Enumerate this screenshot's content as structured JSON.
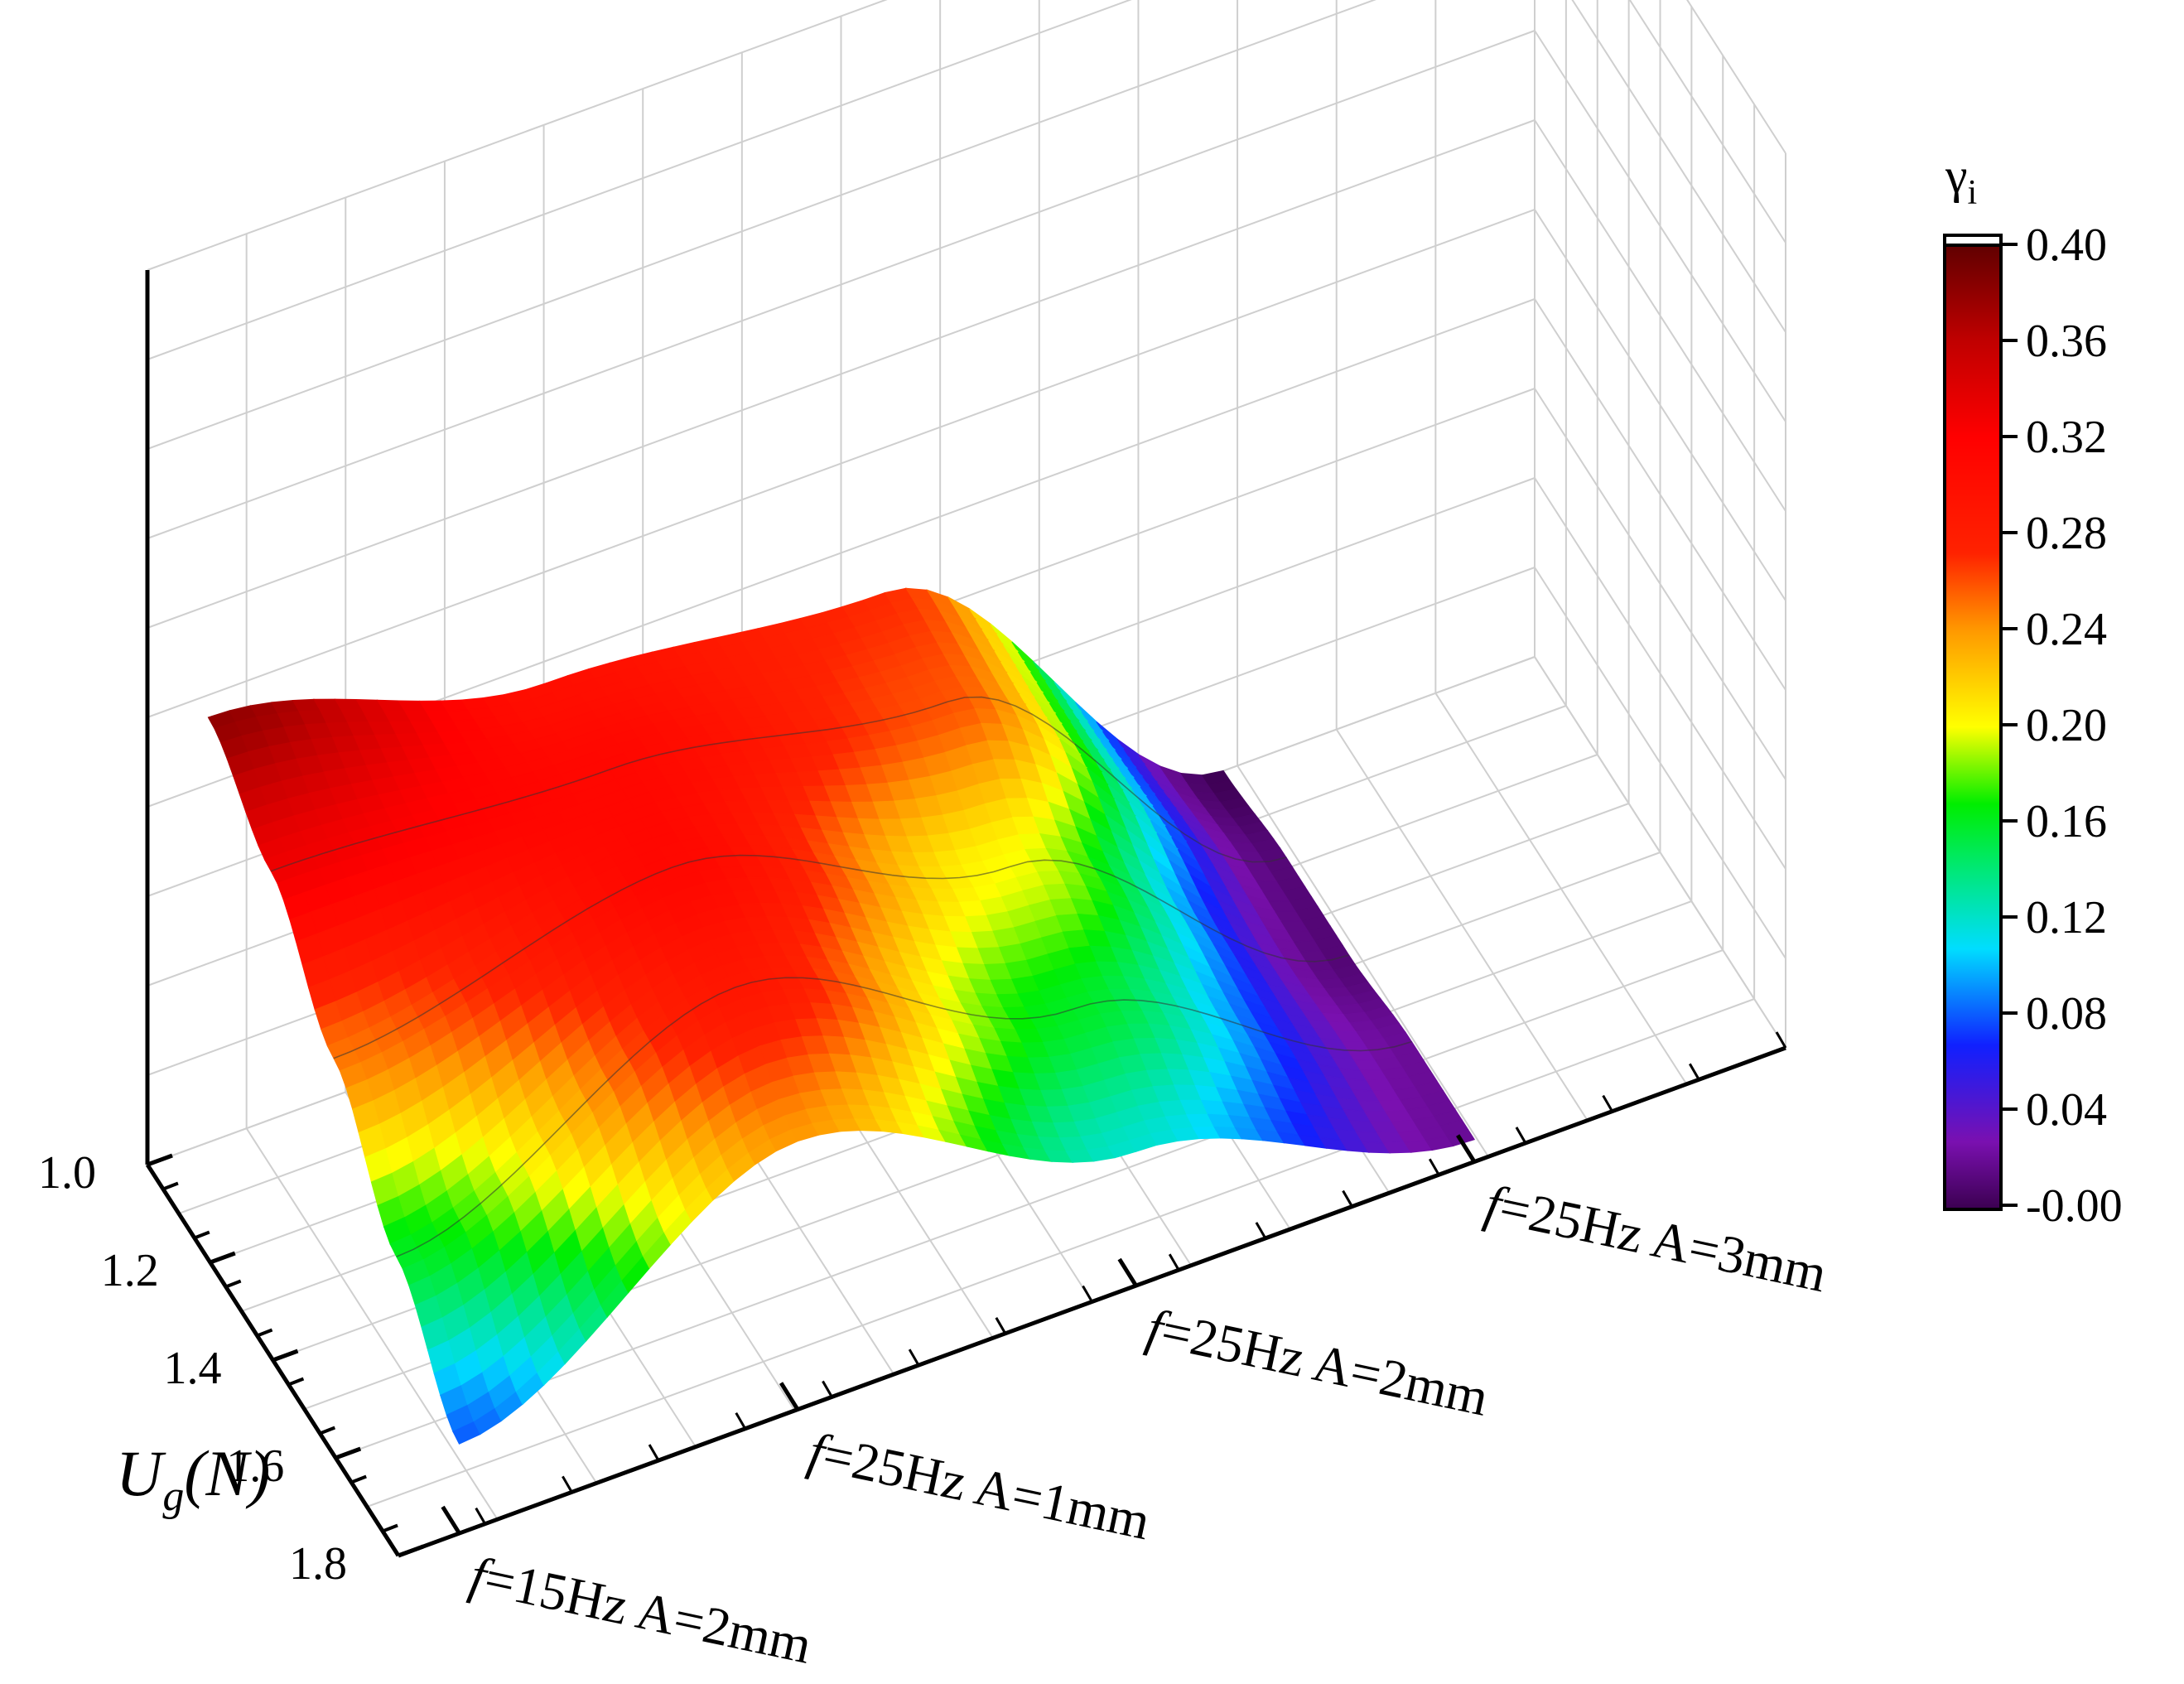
{
  "chart_data": {
    "type": "surface",
    "colorbar_title": "γ",
    "colorbar_title_sub": "i",
    "colorbar_ticks": [
      "0.40",
      "0.36",
      "0.32",
      "0.28",
      "0.24",
      "0.20",
      "0.16",
      "0.12",
      "0.08",
      "0.04",
      "-0.00"
    ],
    "colorbar_range": [
      0.0,
      0.4
    ],
    "y_axis": {
      "label": "U",
      "label_sub": "g",
      "label_suffix": "(N)",
      "ticks": [
        "1.0",
        "1.2",
        "1.4",
        "1.6",
        "1.8"
      ],
      "range": [
        1.0,
        1.8
      ]
    },
    "x_axis": {
      "categories": [
        {
          "italic": "f",
          "rest": "=15Hz A=2mm"
        },
        {
          "italic": "f",
          "rest": "=25Hz A=1mm"
        },
        {
          "italic": "f",
          "rest": "=25Hz A=2mm"
        },
        {
          "italic": "f",
          "rest": "=25Hz A=3mm"
        }
      ]
    },
    "grid": true,
    "surface": {
      "ug": [
        1.0,
        1.2,
        1.4,
        1.6,
        1.8
      ],
      "x": [
        0,
        1,
        2,
        3
      ],
      "z": [
        [
          0.38,
          0.3,
          0.27,
          0.0
        ],
        [
          0.33,
          0.31,
          0.26,
          0.01
        ],
        [
          0.25,
          0.31,
          0.2,
          0.01
        ],
        [
          0.16,
          0.29,
          0.16,
          0.02
        ],
        [
          0.08,
          0.24,
          0.12,
          0.02
        ]
      ]
    }
  }
}
